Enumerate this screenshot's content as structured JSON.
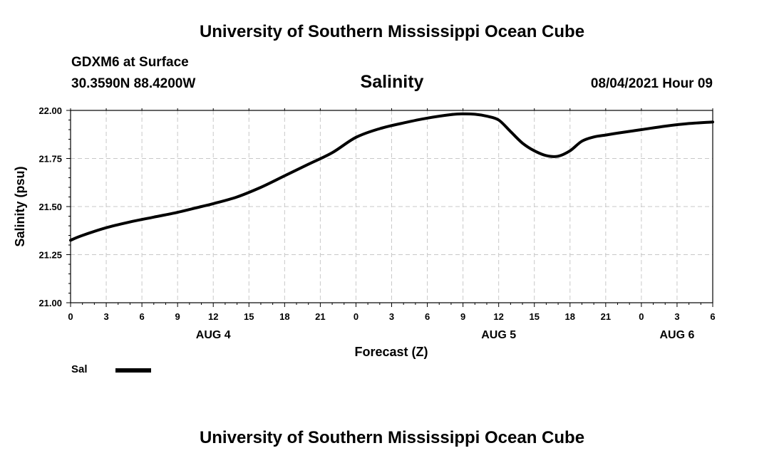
{
  "header": {
    "title": "University of Southern Mississippi Ocean Cube",
    "station": "GDXM6 at Surface",
    "coords": "30.3590N  88.4200W",
    "variable": "Salinity",
    "datetime": "08/04/2021 Hour 09",
    "footer_title": "University of Southern Mississippi Ocean Cube"
  },
  "legend": {
    "label": "Sal",
    "color": "#000000"
  },
  "chart_data": {
    "type": "line",
    "title": "Salinity",
    "xlabel": "Forecast (Z)",
    "ylabel": "Salinity (psu)",
    "xlim": [
      0,
      54
    ],
    "ylim": [
      21.0,
      22.0
    ],
    "x_ticks": [
      0,
      3,
      6,
      9,
      12,
      15,
      18,
      21,
      24,
      27,
      30,
      33,
      36,
      39,
      42,
      45,
      48,
      51,
      54
    ],
    "x_tick_labels": [
      "0",
      "3",
      "6",
      "9",
      "12",
      "15",
      "18",
      "21",
      "0",
      "3",
      "6",
      "9",
      "12",
      "15",
      "18",
      "21",
      "0",
      "3",
      "6"
    ],
    "y_ticks": [
      21.0,
      21.25,
      21.5,
      21.75,
      22.0
    ],
    "y_tick_labels": [
      "21.00",
      "21.25",
      "21.50",
      "21.75",
      "22.00"
    ],
    "date_labels": [
      {
        "x": 12,
        "label": "AUG 4"
      },
      {
        "x": 36,
        "label": "AUG 5"
      },
      {
        "x": 51,
        "label": "AUG 6"
      }
    ],
    "grid": true,
    "series": [
      {
        "name": "Sal",
        "color": "#000000",
        "x": [
          0,
          1,
          3,
          5,
          7,
          9,
          11,
          12,
          14,
          16,
          18,
          20,
          22,
          24,
          26,
          28,
          30,
          32,
          33,
          34,
          35,
          36,
          37,
          38,
          39,
          40,
          41,
          42,
          43,
          44,
          45,
          46,
          48,
          50,
          52,
          54
        ],
        "values": [
          21.325,
          21.35,
          21.39,
          21.42,
          21.445,
          21.47,
          21.5,
          21.515,
          21.55,
          21.6,
          21.66,
          21.72,
          21.78,
          21.86,
          21.905,
          21.935,
          21.96,
          21.978,
          21.982,
          21.98,
          21.97,
          21.95,
          21.89,
          21.83,
          21.79,
          21.765,
          21.762,
          21.79,
          21.84,
          21.862,
          21.872,
          21.882,
          21.9,
          21.918,
          21.932,
          21.94
        ]
      }
    ]
  }
}
